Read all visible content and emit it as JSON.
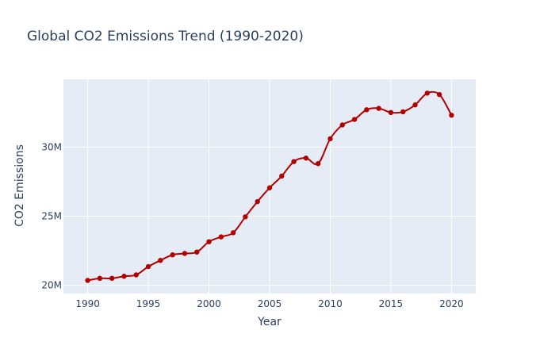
{
  "chart_data": {
    "type": "line",
    "title": "Global CO2 Emissions Trend (1990-2020)",
    "xlabel": "Year",
    "ylabel": "CO2 Emissions",
    "xlim": [
      1988,
      2022
    ],
    "ylim": [
      19400000,
      34900000
    ],
    "x_ticks": [
      1990,
      1995,
      2000,
      2005,
      2010,
      2015,
      2020
    ],
    "x_tick_labels": [
      "1990",
      "1995",
      "2000",
      "2005",
      "2010",
      "2015",
      "2020"
    ],
    "y_ticks": [
      20000000,
      25000000,
      30000000
    ],
    "y_tick_labels": [
      "20M",
      "25M",
      "30M"
    ],
    "grid": true,
    "line_shape": "spline",
    "colors": {
      "line": "#b30000",
      "plot_bg": "#e5ecf6",
      "grid": "#ffffff",
      "text": "#2a3f5f"
    },
    "series": [
      {
        "x": [
          1990,
          1991,
          1992,
          1993,
          1994,
          1995,
          1996,
          1997,
          1998,
          1999,
          2000,
          2001,
          2002,
          2003,
          2004,
          2005,
          2006,
          2007,
          2008,
          2009,
          2010,
          2011,
          2012,
          2013,
          2014,
          2015,
          2016,
          2017,
          2018,
          2019,
          2020
        ],
        "values": [
          20350000,
          20500000,
          20500000,
          20650000,
          20750000,
          21350000,
          21800000,
          22200000,
          22300000,
          22400000,
          23150000,
          23500000,
          23800000,
          24950000,
          26050000,
          27050000,
          27900000,
          28950000,
          29200000,
          28800000,
          30600000,
          31600000,
          32000000,
          32700000,
          32800000,
          32500000,
          32550000,
          33050000,
          33900000,
          33800000,
          32300000
        ]
      }
    ]
  }
}
